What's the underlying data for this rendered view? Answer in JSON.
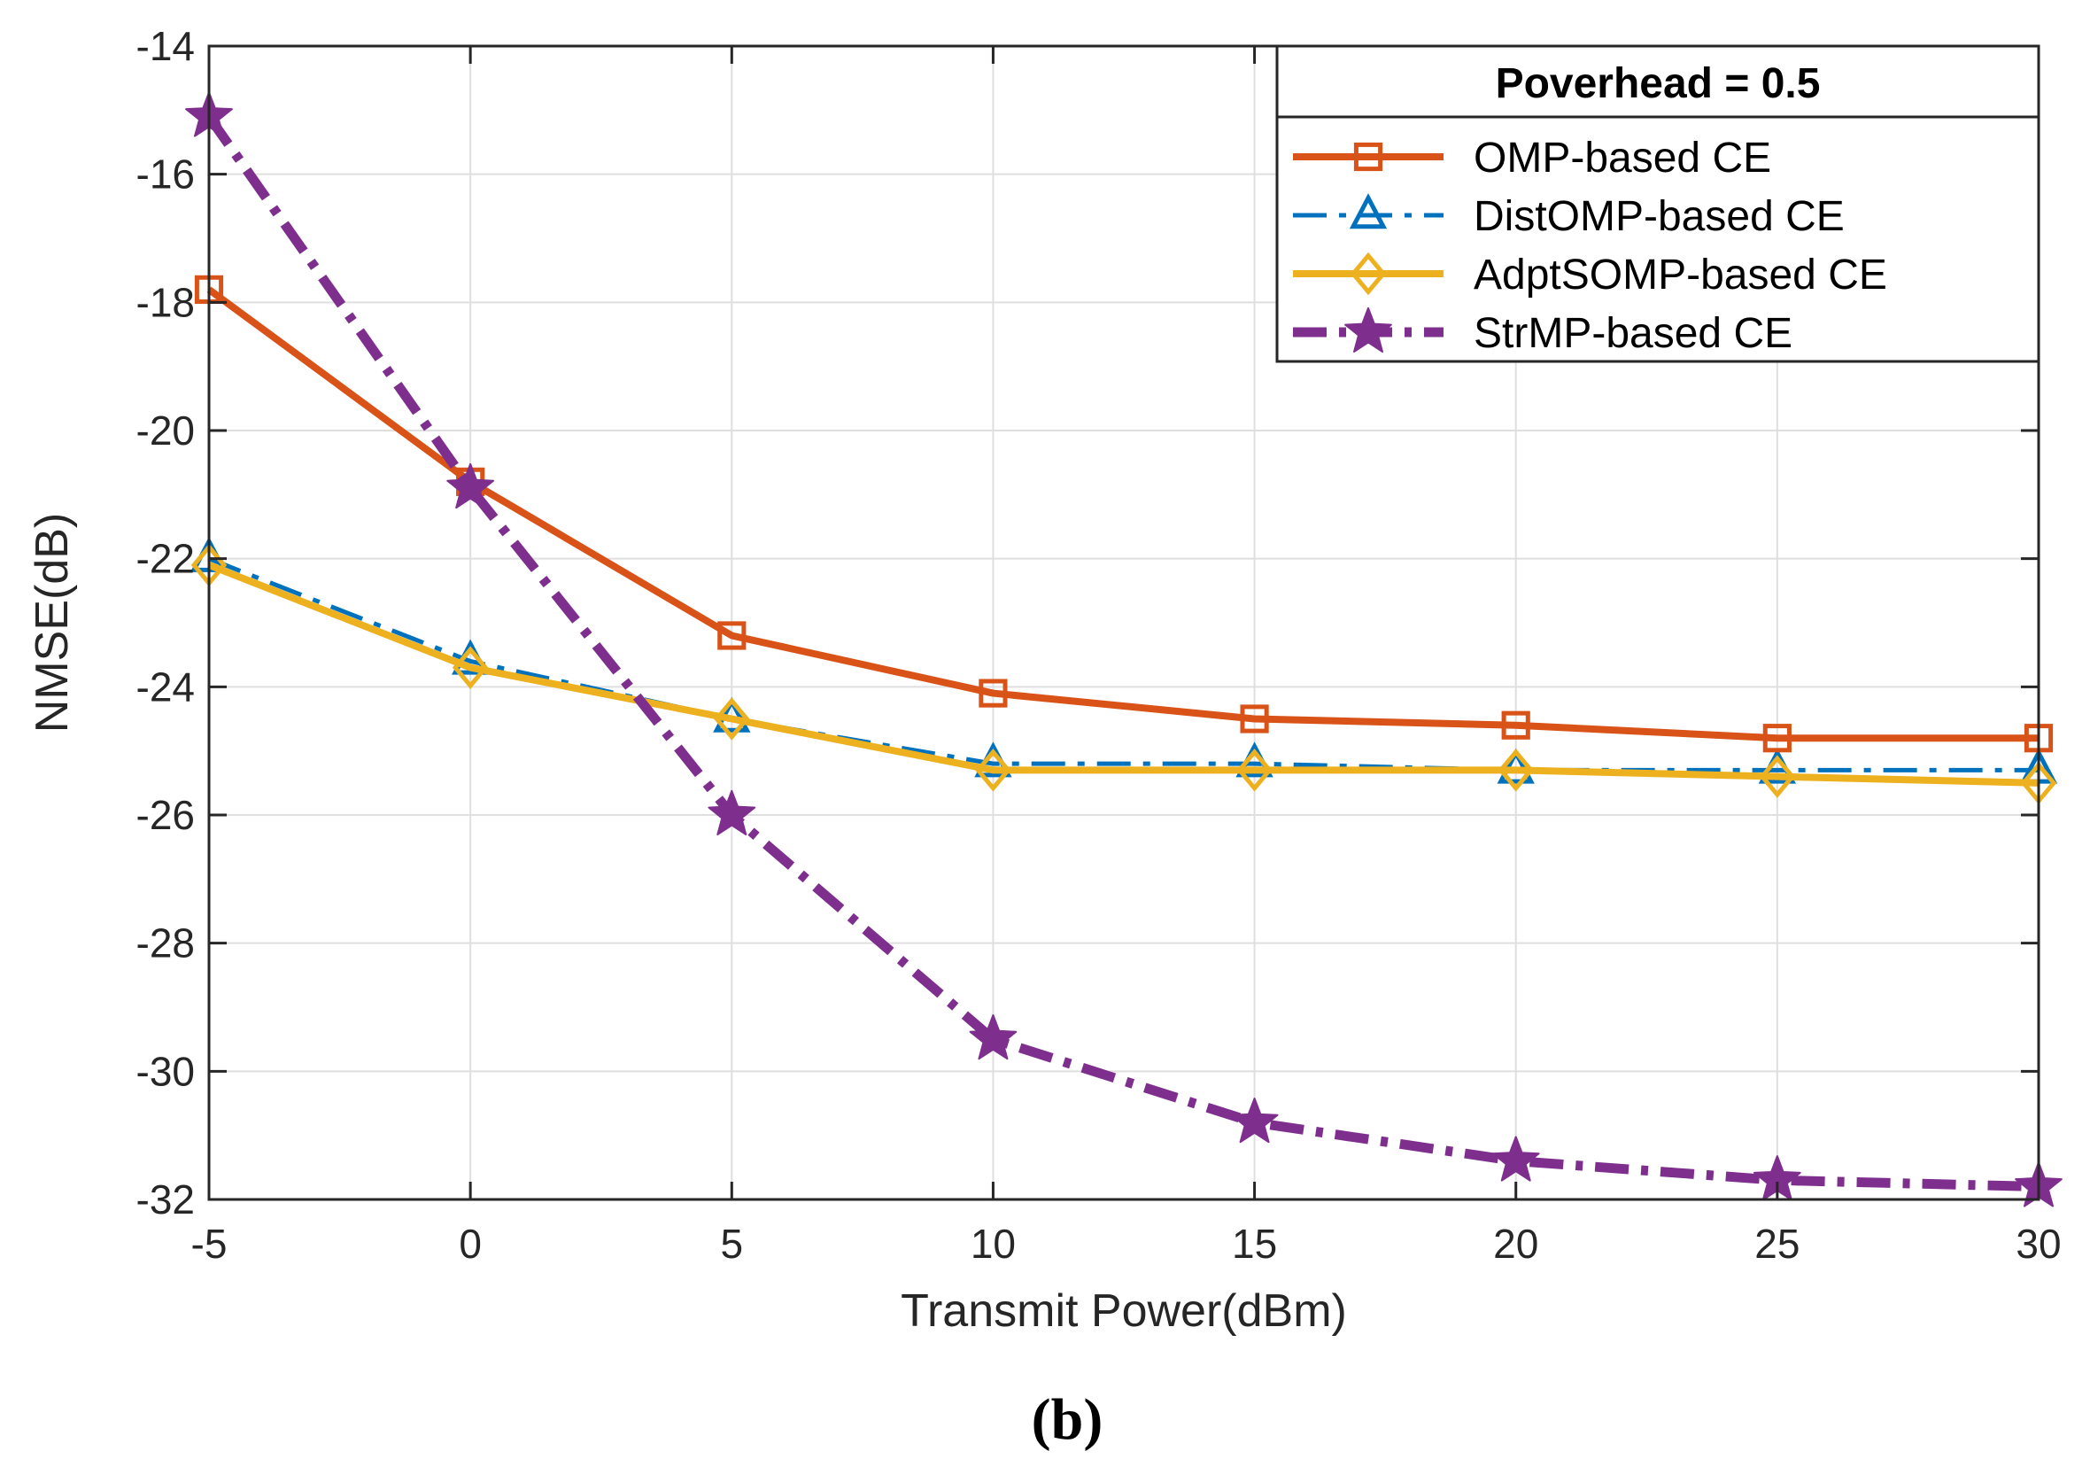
{
  "caption": "(b)",
  "chart_data": {
    "type": "line",
    "title": "",
    "xlabel": "Transmit Power(dBm)",
    "ylabel": "NMSE(dB)",
    "xlim": [
      -5,
      30
    ],
    "ylim": [
      -32,
      -14
    ],
    "xticks": [
      -5,
      0,
      5,
      10,
      15,
      20,
      25,
      30
    ],
    "yticks": [
      -32,
      -30,
      -28,
      -26,
      -24,
      -22,
      -20,
      -18,
      -16,
      -14
    ],
    "x": [
      -5,
      0,
      5,
      10,
      15,
      20,
      25,
      30
    ],
    "grid": true,
    "legend": {
      "title": "Poverhead = 0.5",
      "position": "top-right"
    },
    "series": [
      {
        "name": "OMP-based CE",
        "values": [
          -17.8,
          -20.8,
          -23.2,
          -24.1,
          -24.5,
          -24.6,
          -24.8,
          -24.8
        ],
        "color": "#D95319",
        "marker": "square",
        "line_style": "solid"
      },
      {
        "name": "DistOMP-based CE",
        "values": [
          -22.0,
          -23.6,
          -24.5,
          -25.2,
          -25.2,
          -25.3,
          -25.3,
          -25.3
        ],
        "color": "#0072BD",
        "marker": "triangle",
        "line_style": "dashdot"
      },
      {
        "name": "AdptSOMP-based CE",
        "values": [
          -22.1,
          -23.7,
          -24.5,
          -25.3,
          -25.3,
          -25.3,
          -25.4,
          -25.5
        ],
        "color": "#EDB120",
        "marker": "diamond",
        "line_style": "solid"
      },
      {
        "name": "StrMP-based CE",
        "values": [
          -15.1,
          -20.9,
          -26.0,
          -29.5,
          -30.8,
          -31.4,
          -31.7,
          -31.8
        ],
        "color": "#7E2F8E",
        "marker": "star",
        "line_style": "dashdot"
      }
    ]
  }
}
